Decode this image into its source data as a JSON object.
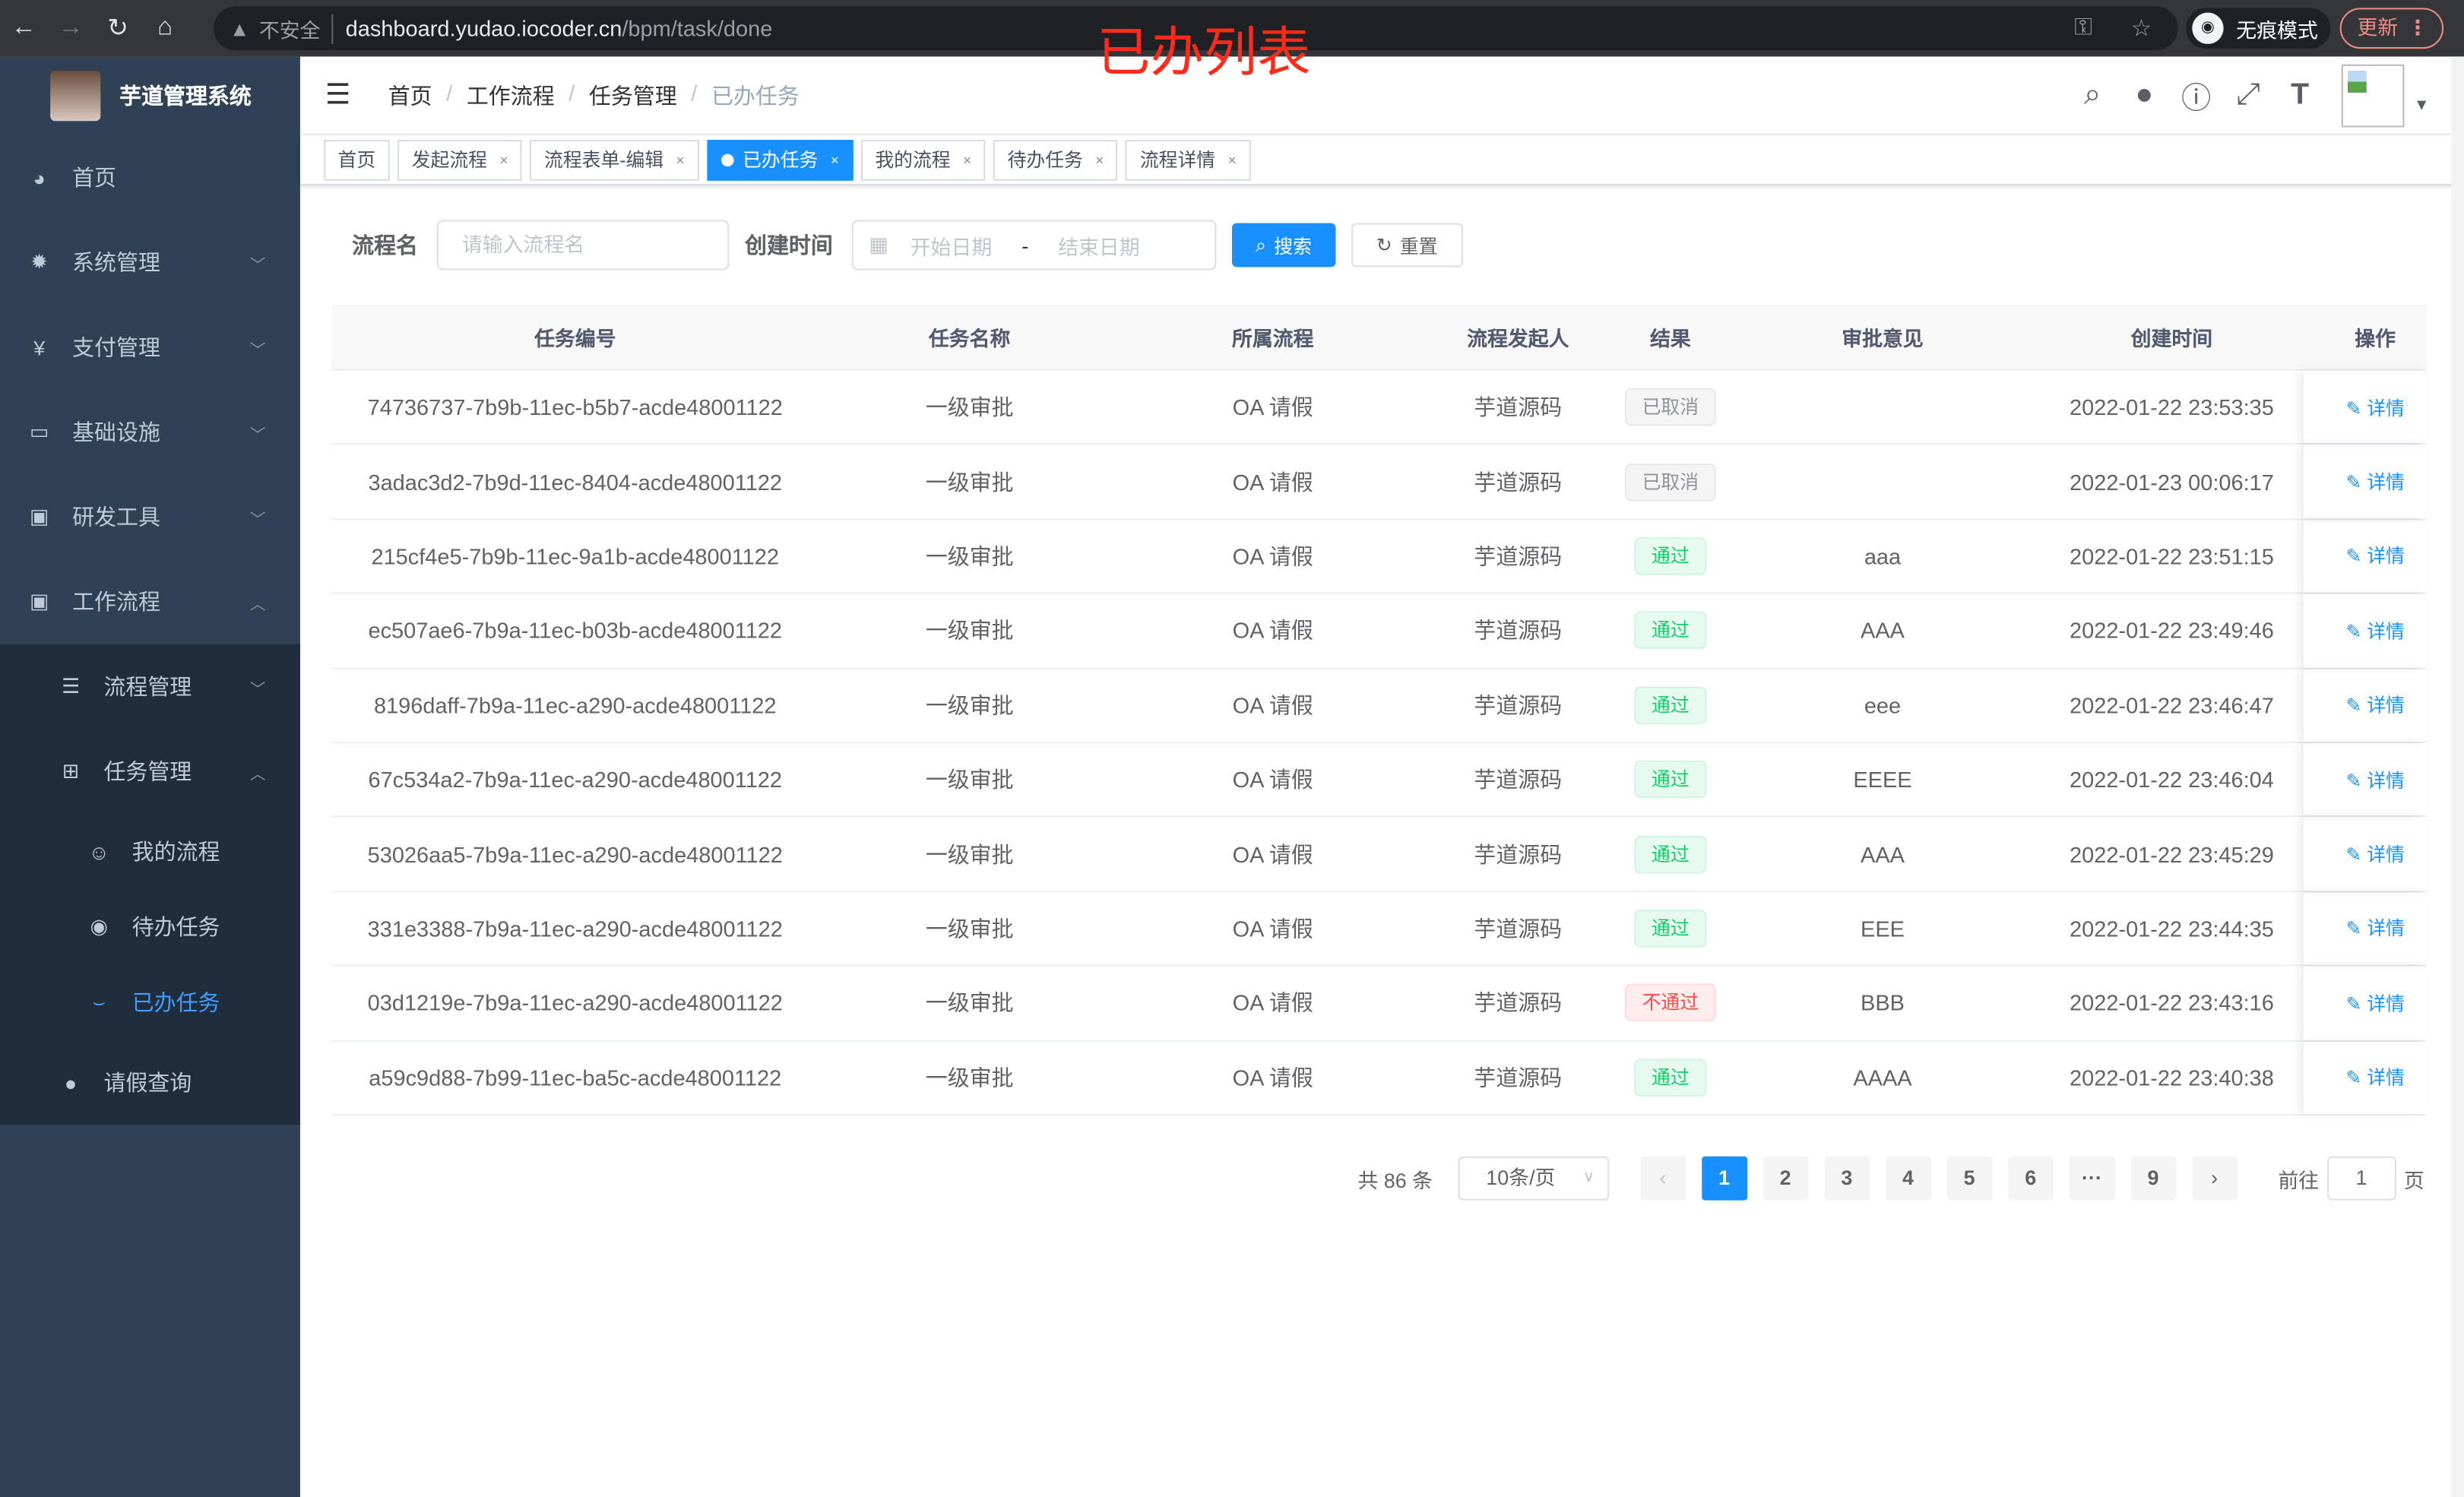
{
  "browser": {
    "insecure_label": "不安全",
    "url_host": "dashboard.yudao.iocoder.cn",
    "url_path": "/bpm/task/done",
    "incognito_label": "无痕模式",
    "update_label": "更新"
  },
  "annotation": "已办列表",
  "sidebar": {
    "title": "芋道管理系统",
    "items": [
      {
        "label": "首页",
        "icon": "dashboard-icon"
      },
      {
        "label": "系统管理",
        "icon": "gear-icon"
      },
      {
        "label": "支付管理",
        "icon": "yen-icon"
      },
      {
        "label": "基础设施",
        "icon": "monitor-icon"
      },
      {
        "label": "研发工具",
        "icon": "toolbox-icon"
      },
      {
        "label": "工作流程",
        "icon": "toolbox-icon"
      }
    ],
    "workflow_children": [
      {
        "label": "流程管理",
        "icon": "list-icon"
      },
      {
        "label": "任务管理",
        "icon": "tree-icon"
      }
    ],
    "task_children": [
      {
        "label": "我的流程",
        "icon": "user-icon"
      },
      {
        "label": "待办任务",
        "icon": "eye-icon"
      },
      {
        "label": "已办任务",
        "icon": "done-icon",
        "active": true
      }
    ],
    "leave": {
      "label": "请假查询",
      "icon": "person-icon"
    }
  },
  "breadcrumb": [
    "首页",
    "工作流程",
    "任务管理",
    "已办任务"
  ],
  "tags": [
    {
      "label": "首页"
    },
    {
      "label": "发起流程"
    },
    {
      "label": "流程表单-编辑"
    },
    {
      "label": "已办任务",
      "active": true
    },
    {
      "label": "我的流程"
    },
    {
      "label": "待办任务"
    },
    {
      "label": "流程详情"
    }
  ],
  "filter": {
    "name_label": "流程名",
    "name_placeholder": "请输入流程名",
    "time_label": "创建时间",
    "start_placeholder": "开始日期",
    "range_sep": "-",
    "end_placeholder": "结束日期",
    "search": "搜索",
    "reset": "重置"
  },
  "table": {
    "headers": [
      "任务编号",
      "任务名称",
      "所属流程",
      "流程发起人",
      "结果",
      "审批意见",
      "创建时间",
      "操作"
    ],
    "action": "详情",
    "rows": [
      [
        "74736737-7b9b-11ec-b5b7-acde48001122",
        "一级审批",
        "OA 请假",
        "芋道源码",
        "已取消",
        "",
        "2022-01-22 23:53:35"
      ],
      [
        "3adac3d2-7b9d-11ec-8404-acde48001122",
        "一级审批",
        "OA 请假",
        "芋道源码",
        "已取消",
        "",
        "2022-01-23 00:06:17"
      ],
      [
        "215cf4e5-7b9b-11ec-9a1b-acde48001122",
        "一级审批",
        "OA 请假",
        "芋道源码",
        "通过",
        "aaa",
        "2022-01-22 23:51:15"
      ],
      [
        "ec507ae6-7b9a-11ec-b03b-acde48001122",
        "一级审批",
        "OA 请假",
        "芋道源码",
        "通过",
        "AAA",
        "2022-01-22 23:49:46"
      ],
      [
        "8196daff-7b9a-11ec-a290-acde48001122",
        "一级审批",
        "OA 请假",
        "芋道源码",
        "通过",
        "eee",
        "2022-01-22 23:46:47"
      ],
      [
        "67c534a2-7b9a-11ec-a290-acde48001122",
        "一级审批",
        "OA 请假",
        "芋道源码",
        "通过",
        "EEEE",
        "2022-01-22 23:46:04"
      ],
      [
        "53026aa5-7b9a-11ec-a290-acde48001122",
        "一级审批",
        "OA 请假",
        "芋道源码",
        "通过",
        "AAA",
        "2022-01-22 23:45:29"
      ],
      [
        "331e3388-7b9a-11ec-a290-acde48001122",
        "一级审批",
        "OA 请假",
        "芋道源码",
        "通过",
        "EEE",
        "2022-01-22 23:44:35"
      ],
      [
        "03d1219e-7b9a-11ec-a290-acde48001122",
        "一级审批",
        "OA 请假",
        "芋道源码",
        "不通过",
        "BBB",
        "2022-01-22 23:43:16"
      ],
      [
        "a59c9d88-7b99-11ec-ba5c-acde48001122",
        "一级审批",
        "OA 请假",
        "芋道源码",
        "通过",
        "AAAA",
        "2022-01-22 23:40:38"
      ]
    ]
  },
  "pagination": {
    "total": "共 86 条",
    "page_size": "10条/页",
    "pages": [
      "1",
      "2",
      "3",
      "4",
      "5",
      "6",
      "···",
      "9"
    ],
    "current": "1",
    "goto_label": "前往",
    "goto_value": "1",
    "page_unit": "页"
  },
  "colors": {
    "primary": "#1890ff",
    "sidebar": "#304156",
    "success": "#13ce66",
    "danger": "#ff4949",
    "info": "#909399"
  }
}
